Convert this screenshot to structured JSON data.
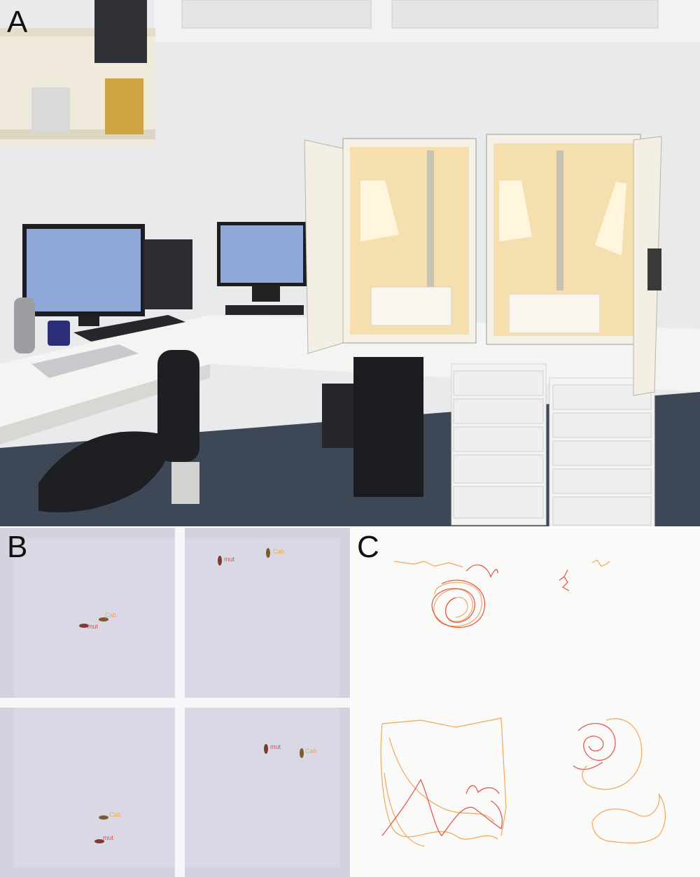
{
  "panels": {
    "a": {
      "letter": "A"
    },
    "b": {
      "letter": "B",
      "tracks": [
        {
          "label": "Cab"
        },
        {
          "label": "Cab"
        },
        {
          "label": "Cab"
        },
        {
          "label": "Cab"
        },
        {
          "label": "mut"
        },
        {
          "label": "mut"
        },
        {
          "label": "mut"
        },
        {
          "label": "mut"
        }
      ]
    },
    "c": {
      "letter": "C"
    }
  },
  "colors": {
    "track_orange": "#f2a65a",
    "track_red": "#e0504a",
    "grid": "#ffffff",
    "arena_bg": "#d3d2de"
  }
}
